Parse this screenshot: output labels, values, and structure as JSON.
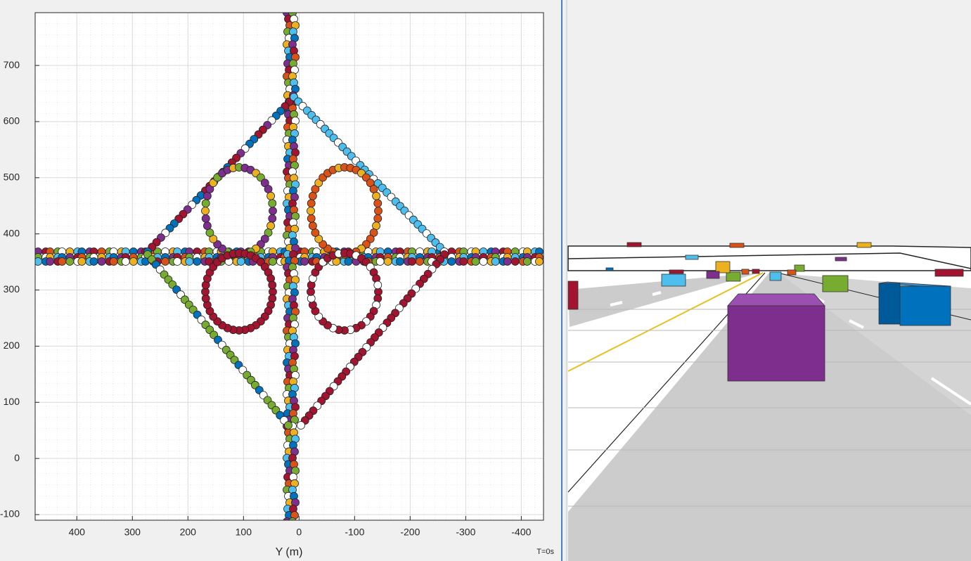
{
  "chart_data": {
    "type": "scatter",
    "xlabel": "Y (m)",
    "time_label": "T=0s",
    "xlim": [
      475,
      -440
    ],
    "ylim": [
      -110,
      794
    ],
    "xticks": [
      400,
      300,
      200,
      100,
      0,
      -100,
      -200,
      -300,
      -400
    ],
    "yticks": [
      -100,
      0,
      100,
      200,
      300,
      400,
      500,
      600,
      700
    ],
    "grid": true
  }
}
